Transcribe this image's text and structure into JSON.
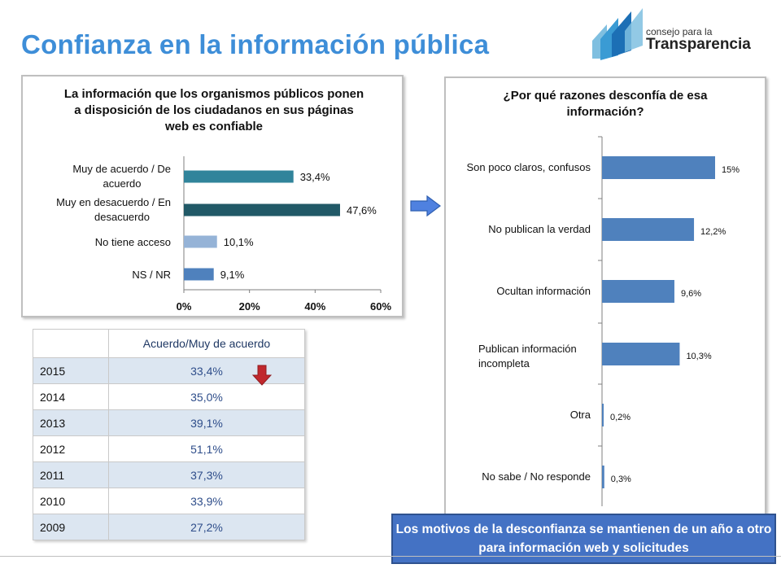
{
  "page": {
    "title": "Confianza en la información pública",
    "logo": {
      "line1": "consejo para la",
      "line2": "Transparencia"
    },
    "note": "Los motivos de la desconfianza se mantienen de un año a otro para información web y solicitudes"
  },
  "chart_data": [
    {
      "type": "bar",
      "orientation": "horizontal",
      "title": "La información que los organismos públicos ponen a disposición de los ciudadanos en sus páginas web es confiable",
      "categories": [
        "Muy de acuerdo / De acuerdo",
        "Muy en desacuerdo / En desacuerdo",
        "No tiene acceso",
        "NS / NR"
      ],
      "values": [
        33.4,
        47.6,
        10.1,
        9.1
      ],
      "value_labels": [
        "33,4%",
        "47,6%",
        "10,1%",
        "9,1%"
      ],
      "colors": [
        "#31849b",
        "#215967",
        "#95b3d7",
        "#4f81bd"
      ],
      "xlim": [
        0,
        60
      ],
      "xticks": [
        "0%",
        "20%",
        "40%",
        "60%"
      ],
      "grid": false
    },
    {
      "type": "bar",
      "orientation": "horizontal",
      "title": "¿Por qué razones desconfía de esa información?",
      "categories": [
        "Son poco claros, confusos",
        "No publican la verdad",
        "Ocultan información",
        "Publican información incompleta",
        "Otra",
        "No sabe / No responde"
      ],
      "values": [
        15,
        12.2,
        9.6,
        10.3,
        0.2,
        0.3
      ],
      "value_labels": [
        "15%",
        "12,2%",
        "9,6%",
        "10,3%",
        "0,2%",
        "0,3%"
      ],
      "color": "#4f81bd",
      "grid": false
    },
    {
      "type": "table",
      "header": "Acuerdo/Muy de acuerdo",
      "rows": [
        {
          "year": "2015",
          "value": "33,4%"
        },
        {
          "year": "2014",
          "value": "35,0%"
        },
        {
          "year": "2013",
          "value": "39,1%"
        },
        {
          "year": "2012",
          "value": "51,1%"
        },
        {
          "year": "2011",
          "value": "37,3%"
        },
        {
          "year": "2010",
          "value": "33,9%"
        },
        {
          "year": "2009",
          "value": "27,2%"
        }
      ]
    }
  ]
}
